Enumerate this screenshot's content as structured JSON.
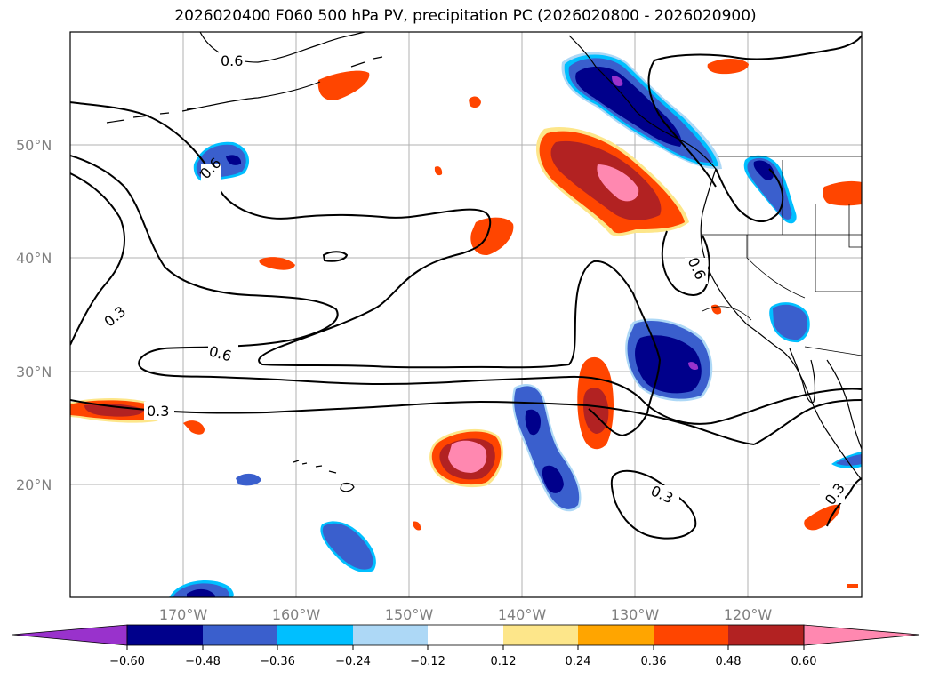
{
  "title": "2026020400 F060 500 hPa PV, precipitation PC (2026020800 - 2026020900)",
  "lat_labels": [
    "50°N",
    "40°N",
    "30°N",
    "20°N"
  ],
  "lon_labels": [
    "170°W",
    "160°W",
    "150°W",
    "140°W",
    "130°W",
    "120°W"
  ],
  "contour_labels": [
    "0.6",
    "0.6",
    "0.6",
    "0.3",
    "0.6",
    "0.3",
    "0.3",
    "0.3"
  ],
  "colorbar": {
    "ticks": [
      "−0.60",
      "−0.48",
      "−0.36",
      "−0.24",
      "−0.12",
      "0.12",
      "0.24",
      "0.36",
      "0.48",
      "0.60"
    ],
    "colors": [
      "#9932cc",
      "#00008b",
      "#3a5fcd",
      "#00bfff",
      "#add8f6",
      "#ffffff",
      "#fde68a",
      "#ffa500",
      "#ff4500",
      "#b22222",
      "#ff88b0"
    ]
  }
}
